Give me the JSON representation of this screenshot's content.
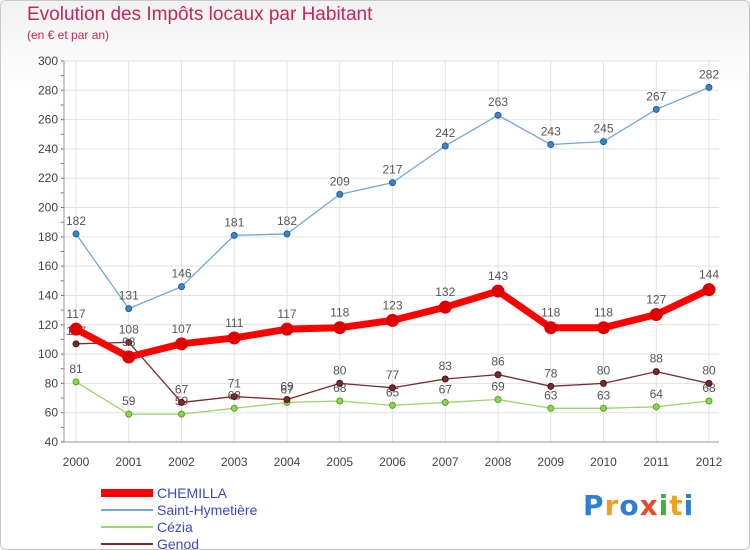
{
  "title": "Evolution des Impôts locaux par Habitant",
  "subtitle": "(en € et par an)",
  "logo": {
    "text": "Proxiti",
    "colors": [
      "#2f7fd1",
      "#f0a020",
      "#2f7fd1",
      "#e84b2a",
      "#3ab53a",
      "#f0a020",
      "#2f7fd1"
    ]
  },
  "chart_data": {
    "type": "line",
    "title": "Evolution des Impôts locaux par Habitant",
    "subtitle": "(en € et par an)",
    "xlabel": "",
    "ylabel": "",
    "x": [
      "2000",
      "2001",
      "2002",
      "2003",
      "2004",
      "2005",
      "2006",
      "2007",
      "2008",
      "2009",
      "2010",
      "2011",
      "2012"
    ],
    "ylim": [
      40,
      300
    ],
    "yticks": [
      40,
      60,
      80,
      100,
      120,
      140,
      160,
      180,
      200,
      220,
      240,
      260,
      280,
      300
    ],
    "grid": true,
    "legend_position": "bottom-left",
    "series": [
      {
        "name": "CHEMILLA",
        "color": "#ff0000",
        "values": [
          117,
          98,
          107,
          111,
          117,
          118,
          123,
          132,
          143,
          118,
          118,
          127,
          144
        ]
      },
      {
        "name": "Saint-Hymetière",
        "color": "#6fa8dc",
        "values": [
          182,
          131,
          146,
          181,
          182,
          209,
          217,
          242,
          263,
          243,
          245,
          267,
          282
        ]
      },
      {
        "name": "Cézia",
        "color": "#9fd36b",
        "values": [
          81,
          59,
          59,
          63,
          67,
          68,
          65,
          67,
          69,
          63,
          63,
          64,
          68
        ]
      },
      {
        "name": "Genod",
        "color": "#7a2a2a",
        "values": [
          107,
          108,
          67,
          71,
          69,
          80,
          77,
          83,
          86,
          78,
          80,
          88,
          80
        ]
      }
    ]
  }
}
